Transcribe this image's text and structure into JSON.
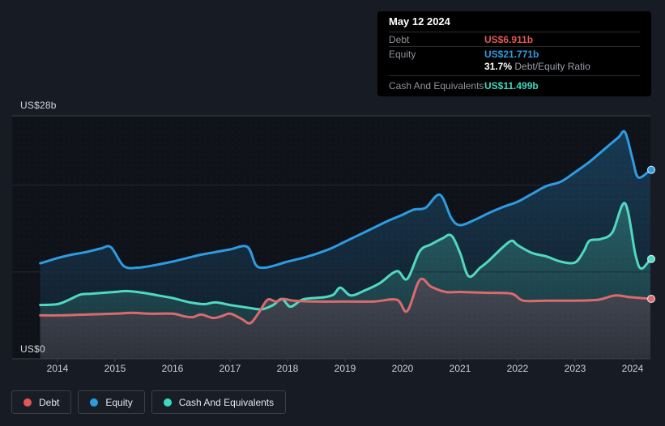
{
  "axis": {
    "y_top_label": "US$28b",
    "y_bottom_label": "US$0",
    "years": [
      "2014",
      "2015",
      "2016",
      "2017",
      "2018",
      "2019",
      "2020",
      "2021",
      "2022",
      "2023",
      "2024"
    ]
  },
  "tooltip": {
    "date": "May 12 2024",
    "debt_label": "Debt",
    "debt_value": "US$6.911b",
    "equity_label": "Equity",
    "equity_value": "US$21.771b",
    "ratio_value": "31.7%",
    "ratio_label": "Debt/Equity Ratio",
    "cash_label": "Cash And Equivalents",
    "cash_value": "US$11.499b"
  },
  "legend": {
    "debt": "Debt",
    "equity": "Equity",
    "cash": "Cash And Equivalents"
  },
  "colors": {
    "debt": "#e25757",
    "equity": "#2d9cdb",
    "cash": "#3dd8bf",
    "debt_line": "#d96b6e",
    "equity_line": "#2d9ce2",
    "cash_line": "#4fd9c1",
    "grid_major": "#3b414d",
    "grid_minor": "#252b35",
    "plot_bg": "#0f1219"
  },
  "chart_data": {
    "type": "area",
    "units": "US$ billions",
    "x_range": [
      2013.7,
      2024.31
    ],
    "ylim": [
      0,
      28
    ],
    "y_gridlines": [
      0,
      10,
      20,
      28
    ],
    "x_ticks": [
      2014,
      2015,
      2016,
      2017,
      2018,
      2019,
      2020,
      2021,
      2022,
      2023,
      2024
    ],
    "legend_position": "bottom-left",
    "end_date": "May 12 2024",
    "series": [
      {
        "name": "Debt",
        "color": "#d96b6e",
        "end_value": 6.911,
        "points": [
          [
            2013.7,
            5.0
          ],
          [
            2014.0,
            5.0
          ],
          [
            2014.5,
            5.1
          ],
          [
            2015.0,
            5.2
          ],
          [
            2015.3,
            5.3
          ],
          [
            2015.6,
            5.2
          ],
          [
            2016.0,
            5.2
          ],
          [
            2016.2,
            4.9
          ],
          [
            2016.35,
            4.8
          ],
          [
            2016.5,
            5.1
          ],
          [
            2016.7,
            4.7
          ],
          [
            2016.85,
            4.9
          ],
          [
            2017.0,
            5.2
          ],
          [
            2017.2,
            4.6
          ],
          [
            2017.35,
            4.1
          ],
          [
            2017.5,
            5.3
          ],
          [
            2017.65,
            6.8
          ],
          [
            2017.8,
            6.6
          ],
          [
            2017.93,
            6.9
          ],
          [
            2018.1,
            6.7
          ],
          [
            2018.5,
            6.6
          ],
          [
            2019.0,
            6.6
          ],
          [
            2019.5,
            6.6
          ],
          [
            2019.9,
            6.8
          ],
          [
            2020.08,
            5.5
          ],
          [
            2020.3,
            9.1
          ],
          [
            2020.5,
            8.3
          ],
          [
            2020.75,
            7.7
          ],
          [
            2021.0,
            7.7
          ],
          [
            2021.5,
            7.6
          ],
          [
            2021.9,
            7.5
          ],
          [
            2022.1,
            6.7
          ],
          [
            2022.5,
            6.7
          ],
          [
            2023.0,
            6.7
          ],
          [
            2023.4,
            6.8
          ],
          [
            2023.7,
            7.3
          ],
          [
            2023.95,
            7.1
          ],
          [
            2024.31,
            6.91
          ]
        ]
      },
      {
        "name": "Equity",
        "color": "#2d9ce2",
        "end_value": 21.771,
        "points": [
          [
            2013.7,
            11.0
          ],
          [
            2014.0,
            11.6
          ],
          [
            2014.25,
            12.0
          ],
          [
            2014.5,
            12.3
          ],
          [
            2014.75,
            12.7
          ],
          [
            2014.93,
            12.85
          ],
          [
            2015.15,
            10.7
          ],
          [
            2015.4,
            10.5
          ],
          [
            2015.7,
            10.8
          ],
          [
            2016.0,
            11.2
          ],
          [
            2016.25,
            11.6
          ],
          [
            2016.5,
            12.0
          ],
          [
            2016.75,
            12.3
          ],
          [
            2017.0,
            12.6
          ],
          [
            2017.3,
            12.9
          ],
          [
            2017.45,
            10.8
          ],
          [
            2017.6,
            10.5
          ],
          [
            2017.8,
            10.8
          ],
          [
            2018.0,
            11.2
          ],
          [
            2018.25,
            11.6
          ],
          [
            2018.5,
            12.1
          ],
          [
            2018.75,
            12.7
          ],
          [
            2019.0,
            13.5
          ],
          [
            2019.25,
            14.3
          ],
          [
            2019.5,
            15.1
          ],
          [
            2019.75,
            15.9
          ],
          [
            2020.0,
            16.6
          ],
          [
            2020.2,
            17.2
          ],
          [
            2020.4,
            17.4
          ],
          [
            2020.65,
            18.9
          ],
          [
            2020.85,
            16.2
          ],
          [
            2021.0,
            15.4
          ],
          [
            2021.25,
            16.0
          ],
          [
            2021.5,
            16.8
          ],
          [
            2021.75,
            17.5
          ],
          [
            2022.0,
            18.1
          ],
          [
            2022.25,
            19.0
          ],
          [
            2022.5,
            19.9
          ],
          [
            2022.75,
            20.4
          ],
          [
            2023.0,
            21.5
          ],
          [
            2023.25,
            22.7
          ],
          [
            2023.5,
            24.1
          ],
          [
            2023.75,
            25.5
          ],
          [
            2023.87,
            26.1
          ],
          [
            2024.0,
            23.0
          ],
          [
            2024.1,
            20.9
          ],
          [
            2024.31,
            21.77
          ]
        ]
      },
      {
        "name": "Cash And Equivalents",
        "color": "#4fd9c1",
        "end_value": 11.499,
        "points": [
          [
            2013.7,
            6.2
          ],
          [
            2014.0,
            6.3
          ],
          [
            2014.2,
            6.8
          ],
          [
            2014.4,
            7.4
          ],
          [
            2014.6,
            7.5
          ],
          [
            2015.0,
            7.7
          ],
          [
            2015.2,
            7.8
          ],
          [
            2015.5,
            7.6
          ],
          [
            2015.75,
            7.3
          ],
          [
            2016.0,
            7.0
          ],
          [
            2016.3,
            6.5
          ],
          [
            2016.55,
            6.3
          ],
          [
            2016.75,
            6.5
          ],
          [
            2017.0,
            6.2
          ],
          [
            2017.3,
            5.9
          ],
          [
            2017.55,
            5.7
          ],
          [
            2017.75,
            6.2
          ],
          [
            2017.9,
            6.9
          ],
          [
            2018.05,
            6.0
          ],
          [
            2018.25,
            6.8
          ],
          [
            2018.45,
            7.0
          ],
          [
            2018.65,
            7.1
          ],
          [
            2018.8,
            7.4
          ],
          [
            2018.92,
            8.2
          ],
          [
            2019.1,
            7.3
          ],
          [
            2019.35,
            7.9
          ],
          [
            2019.6,
            8.7
          ],
          [
            2019.9,
            10.1
          ],
          [
            2020.08,
            9.2
          ],
          [
            2020.3,
            12.4
          ],
          [
            2020.5,
            13.2
          ],
          [
            2020.7,
            13.9
          ],
          [
            2020.85,
            14.2
          ],
          [
            2021.0,
            12.2
          ],
          [
            2021.15,
            9.5
          ],
          [
            2021.35,
            10.5
          ],
          [
            2021.5,
            11.3
          ],
          [
            2021.75,
            12.9
          ],
          [
            2021.9,
            13.6
          ],
          [
            2022.0,
            13.1
          ],
          [
            2022.25,
            12.2
          ],
          [
            2022.5,
            11.8
          ],
          [
            2022.75,
            11.2
          ],
          [
            2023.0,
            11.1
          ],
          [
            2023.15,
            12.4
          ],
          [
            2023.25,
            13.6
          ],
          [
            2023.45,
            13.8
          ],
          [
            2023.65,
            14.6
          ],
          [
            2023.87,
            17.9
          ],
          [
            2024.05,
            12.0
          ],
          [
            2024.15,
            10.4
          ],
          [
            2024.31,
            11.5
          ]
        ]
      }
    ]
  }
}
